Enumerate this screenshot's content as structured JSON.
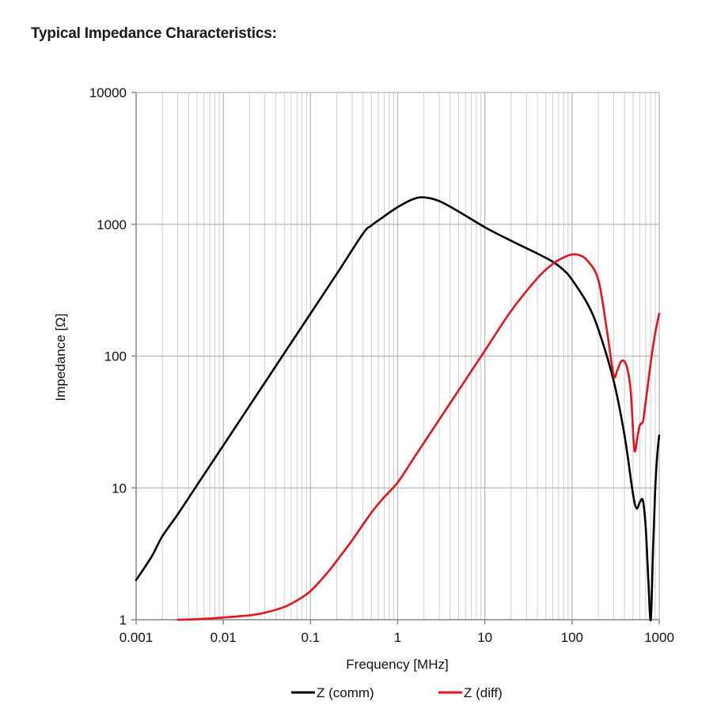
{
  "page": {
    "title": "Typical Impedance Characteristics:"
  },
  "colors": {
    "comm": "#000000",
    "diff": "#e3141b",
    "grid": "#cfcfcf",
    "axis": "#8a8a8a"
  },
  "chart_data": {
    "type": "line",
    "title": "",
    "xlabel": "Frequency [MHz]",
    "ylabel": "Impedance [Ω]",
    "xscale": "log",
    "yscale": "log",
    "xlim": [
      0.001,
      1000
    ],
    "ylim": [
      1,
      10000
    ],
    "grid": true,
    "legend_position": "bottom",
    "x_tick_labels": [
      "0.001",
      "0.01",
      "0.1",
      "1",
      "10",
      "100",
      "1000"
    ],
    "y_tick_labels": [
      "1",
      "10",
      "100",
      "1000",
      "10000"
    ],
    "series": [
      {
        "name": "Z (comm)",
        "color": "#000000",
        "points": [
          [
            0.001,
            2.0
          ],
          [
            0.0015,
            3.0
          ],
          [
            0.002,
            4.3
          ],
          [
            0.003,
            6.3
          ],
          [
            0.005,
            10.5
          ],
          [
            0.01,
            21
          ],
          [
            0.02,
            42
          ],
          [
            0.05,
            105
          ],
          [
            0.1,
            210
          ],
          [
            0.2,
            420
          ],
          [
            0.4,
            850
          ],
          [
            0.5,
            980
          ],
          [
            0.7,
            1150
          ],
          [
            1.0,
            1350
          ],
          [
            1.5,
            1550
          ],
          [
            2.0,
            1600
          ],
          [
            3.0,
            1500
          ],
          [
            5.0,
            1250
          ],
          [
            10,
            950
          ],
          [
            20,
            750
          ],
          [
            40,
            600
          ],
          [
            60,
            520
          ],
          [
            80,
            450
          ],
          [
            100,
            380
          ],
          [
            150,
            250
          ],
          [
            200,
            160
          ],
          [
            300,
            65
          ],
          [
            400,
            25
          ],
          [
            500,
            9
          ],
          [
            550,
            7.0
          ],
          [
            600,
            7.8
          ],
          [
            650,
            8.0
          ],
          [
            700,
            5
          ],
          [
            750,
            2
          ],
          [
            800,
            1.0
          ],
          [
            850,
            3.5
          ],
          [
            900,
            10
          ],
          [
            950,
            18
          ],
          [
            1000,
            25
          ]
        ]
      },
      {
        "name": "Z (diff)",
        "color": "#e3141b",
        "points": [
          [
            0.003,
            1.0
          ],
          [
            0.005,
            1.01
          ],
          [
            0.01,
            1.04
          ],
          [
            0.02,
            1.08
          ],
          [
            0.03,
            1.13
          ],
          [
            0.05,
            1.25
          ],
          [
            0.07,
            1.4
          ],
          [
            0.1,
            1.65
          ],
          [
            0.15,
            2.2
          ],
          [
            0.2,
            2.8
          ],
          [
            0.3,
            4.0
          ],
          [
            0.5,
            6.5
          ],
          [
            0.7,
            8.5
          ],
          [
            1.0,
            11
          ],
          [
            1.5,
            16.5
          ],
          [
            2.0,
            22
          ],
          [
            3.0,
            33
          ],
          [
            5.0,
            55
          ],
          [
            10,
            110
          ],
          [
            20,
            220
          ],
          [
            40,
            390
          ],
          [
            60,
            500
          ],
          [
            80,
            560
          ],
          [
            100,
            590
          ],
          [
            120,
            585
          ],
          [
            150,
            530
          ],
          [
            200,
            380
          ],
          [
            250,
            160
          ],
          [
            300,
            72
          ],
          [
            330,
            78
          ],
          [
            370,
            92
          ],
          [
            420,
            85
          ],
          [
            470,
            55
          ],
          [
            510,
            22
          ],
          [
            530,
            19
          ],
          [
            560,
            24
          ],
          [
            600,
            30
          ],
          [
            650,
            32
          ],
          [
            700,
            45
          ],
          [
            800,
            90
          ],
          [
            900,
            150
          ],
          [
            1000,
            210
          ]
        ]
      }
    ]
  }
}
